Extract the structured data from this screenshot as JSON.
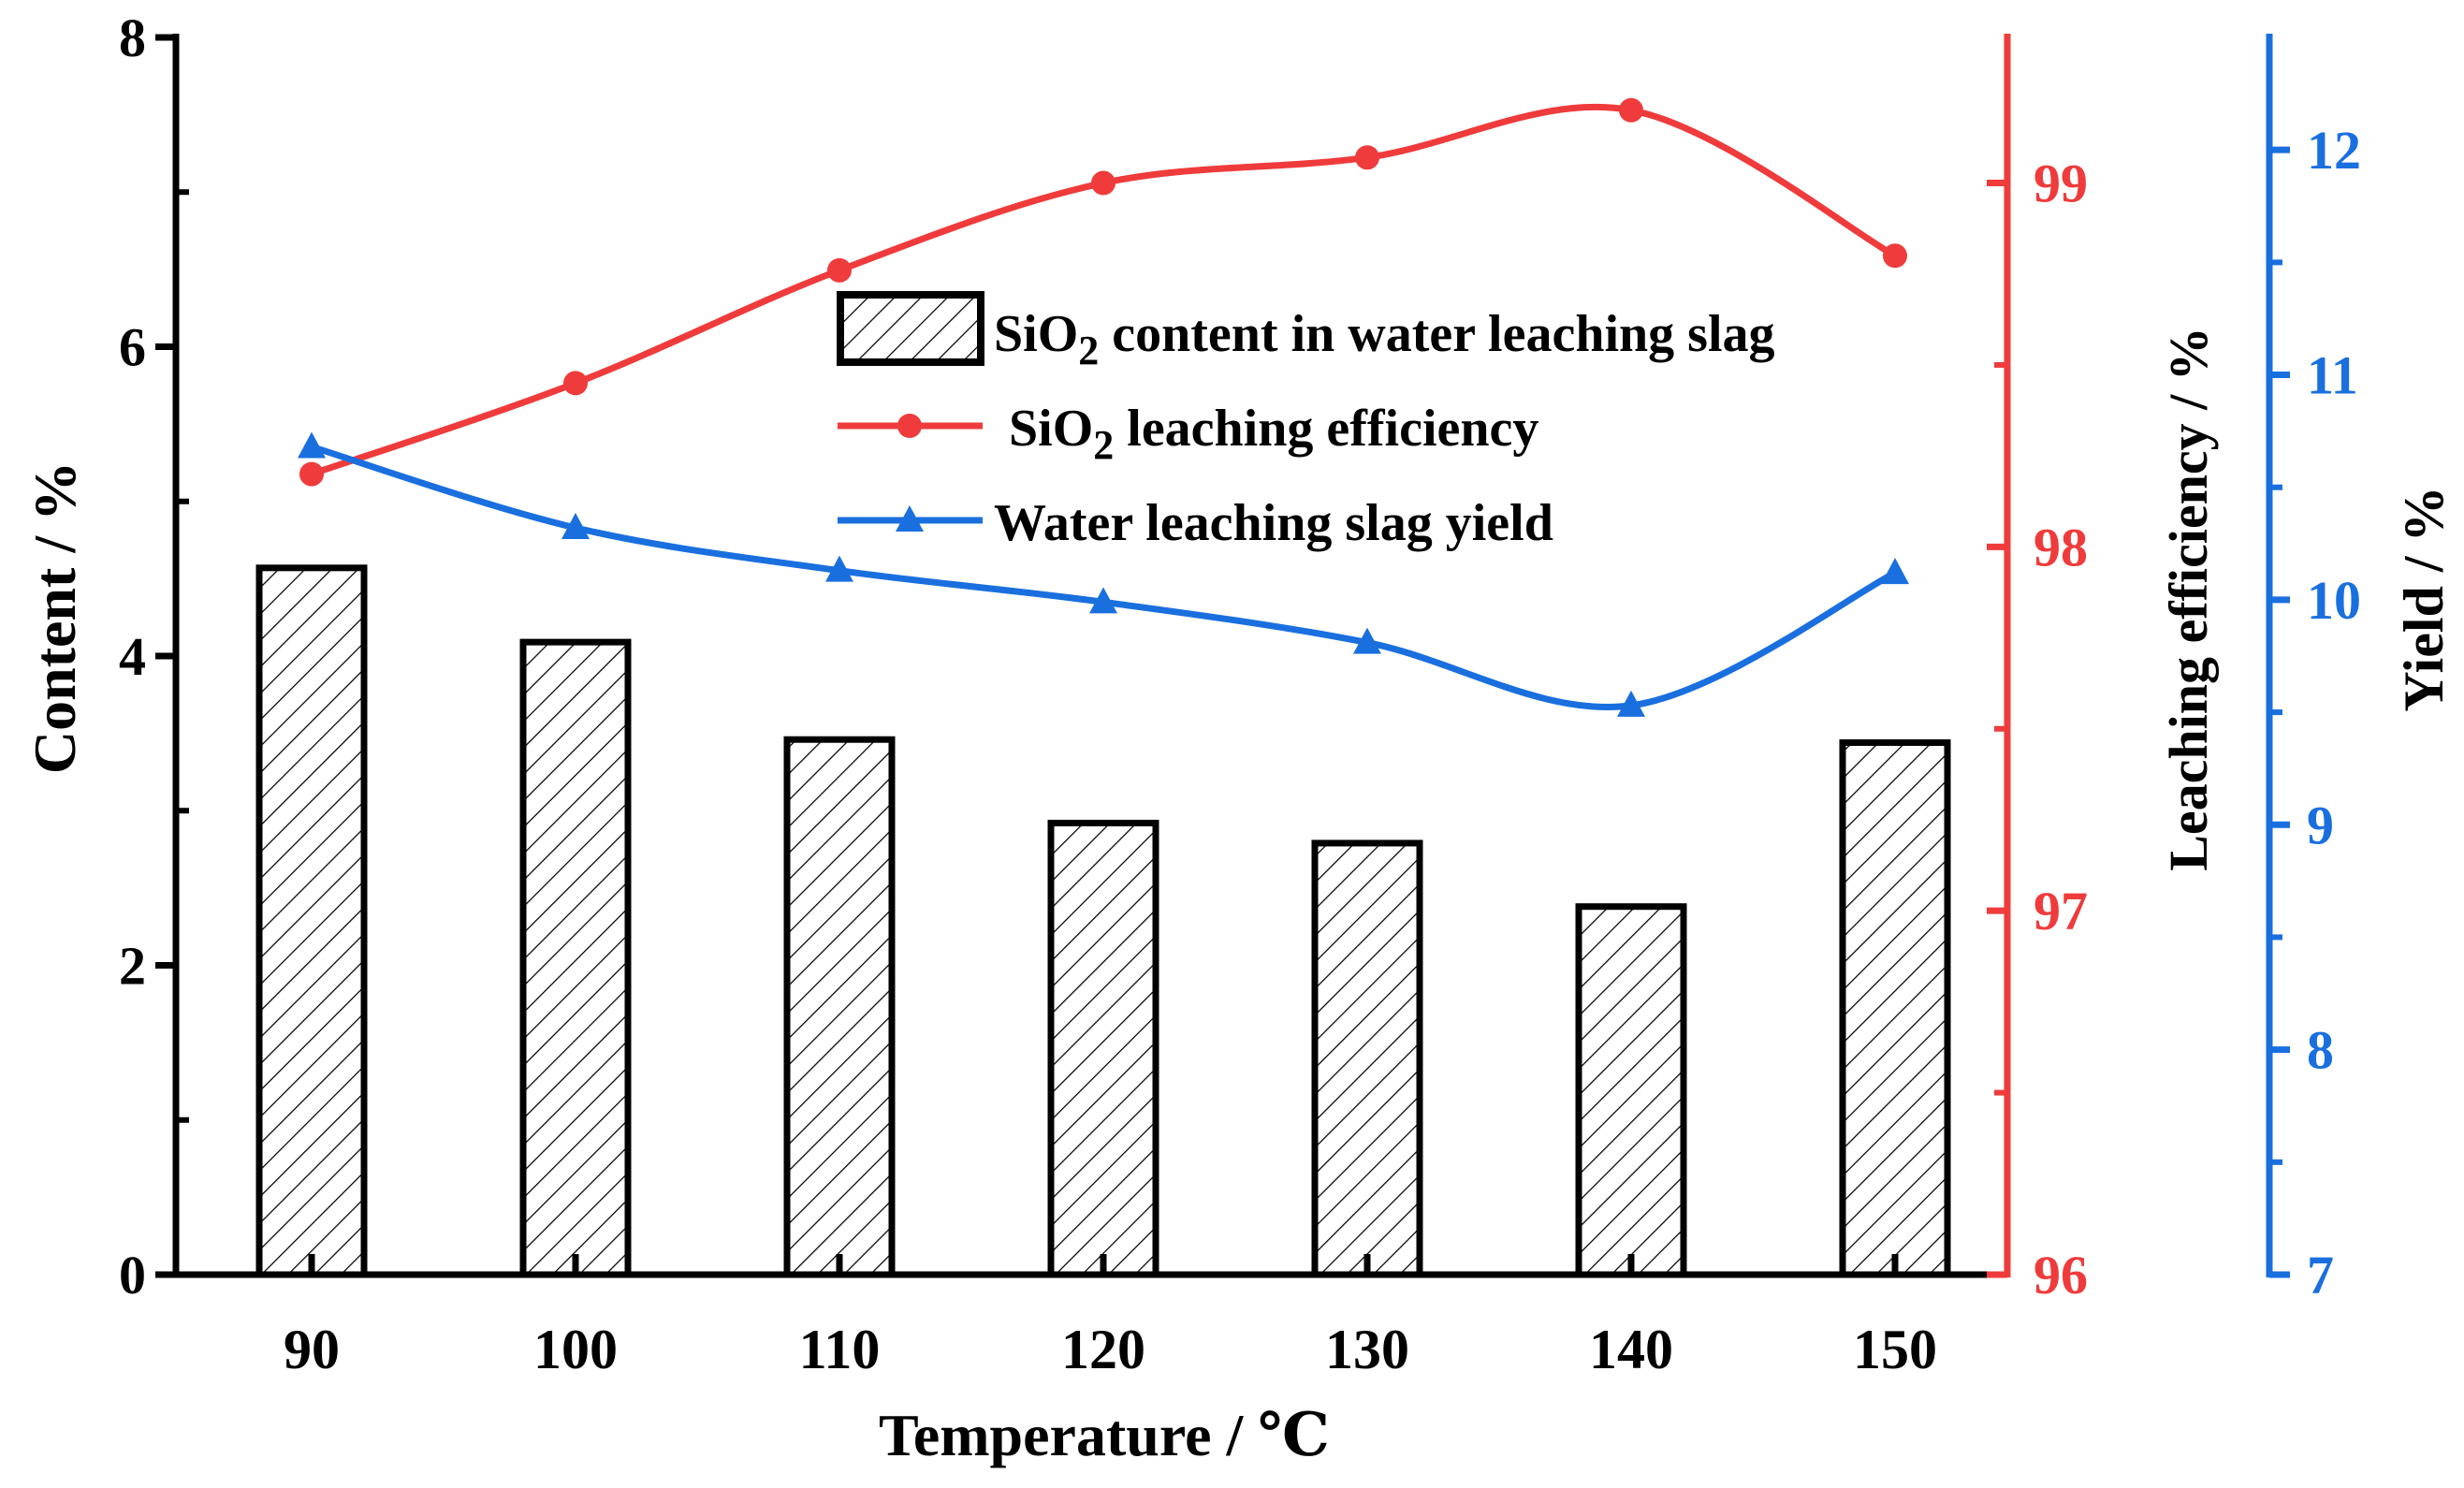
{
  "chart_data": {
    "type": "bar",
    "categories": [
      "90",
      "100",
      "110",
      "120",
      "130",
      "140",
      "150"
    ],
    "xlabel": "Temperature / ℃",
    "series": [
      {
        "name": "SiO2 content in water leaching slag",
        "kind": "bar",
        "axis": "left",
        "values": [
          4.57,
          4.09,
          3.46,
          2.92,
          2.79,
          2.38,
          3.44
        ],
        "color": "#000000"
      },
      {
        "name": "SiO2 leaching efficiency",
        "kind": "line",
        "axis": "right1",
        "marker": "circle",
        "values": [
          98.2,
          98.45,
          98.76,
          99.0,
          99.07,
          99.2,
          98.8
        ],
        "color": "#ef3b3b"
      },
      {
        "name": "Water leaching slag yield",
        "kind": "line",
        "axis": "right2",
        "marker": "triangle",
        "values": [
          10.68,
          10.32,
          10.13,
          9.99,
          9.81,
          9.53,
          10.12
        ],
        "color": "#1a6fdf"
      }
    ],
    "axes": {
      "left": {
        "label": "Content  / %",
        "ylim": [
          0,
          8
        ],
        "ticks": [
          "0",
          "2",
          "4",
          "6",
          "8"
        ],
        "color": "#000000"
      },
      "right1": {
        "label": "Leaching efficiency  / %",
        "ylim": [
          96,
          99.4
        ],
        "ticks": [
          "96",
          "97",
          "98",
          "99"
        ],
        "color": "#ef3b3b"
      },
      "right2": {
        "label": "Yield / %",
        "ylim": [
          7,
          12.5
        ],
        "ticks": [
          "7",
          "8",
          "9",
          "10",
          "11",
          "12"
        ],
        "color": "#1a6fdf"
      }
    },
    "legend": {
      "position": "top-center",
      "entries": [
        {
          "pre": "SiO",
          "sub": "2",
          "post": " content in water leaching slag"
        },
        {
          "pre": "SiO",
          "sub": "2",
          "post": " leaching efficiency"
        },
        {
          "pre": "Water leaching slag yield",
          "sub": "",
          "post": ""
        }
      ]
    },
    "grid": false
  }
}
